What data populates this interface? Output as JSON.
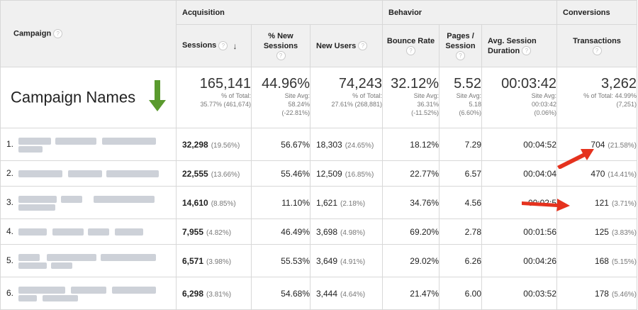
{
  "header": {
    "campaign_label": "Campaign",
    "groups": {
      "acquisition": "Acquisition",
      "behavior": "Behavior",
      "conversions": "Conversions"
    },
    "columns": {
      "sessions": "Sessions",
      "new_sessions": "% New Sessions",
      "new_users": "New Users",
      "bounce_rate": "Bounce Rate",
      "pages_session": "Pages / Session",
      "avg_duration": "Avg. Session Duration",
      "transactions": "Transactions"
    },
    "help_glyph": "?",
    "sort_glyph": "↓"
  },
  "totals": {
    "campaign_names": "Campaign Names",
    "sessions": {
      "value": "165,141",
      "sub1": "% of Total:",
      "sub2": "35.77% (461,674)"
    },
    "new_sessions": {
      "value": "44.96%",
      "sub1": "Site Avg:",
      "sub2": "58.24%",
      "sub3": "(-22.81%)"
    },
    "new_users": {
      "value": "74,243",
      "sub1": "% of Total:",
      "sub2": "27.61% (268,881)"
    },
    "bounce_rate": {
      "value": "32.12%",
      "sub1": "Site Avg:",
      "sub2": "36.31%",
      "sub3": "(-11.52%)"
    },
    "pages_session": {
      "value": "5.52",
      "sub1": "Site Avg:",
      "sub2": "5.18",
      "sub3": "(6.60%)"
    },
    "avg_duration": {
      "value": "00:03:42",
      "sub1": "Site Avg:",
      "sub2": "00:03:42",
      "sub3": "(0.06%)"
    },
    "transactions": {
      "value": "3,262",
      "sub1": "% of Total: 44.99%",
      "sub2": "(7,251)"
    }
  },
  "rows": [
    {
      "index": "1.",
      "sessions": "32,298",
      "sessions_pct": "(19.56%)",
      "new_sessions": "56.67%",
      "new_users": "18,303",
      "new_users_pct": "(24.65%)",
      "bounce_rate": "18.12%",
      "pages_session": "7.29",
      "avg_duration": "00:04:52",
      "transactions": "704",
      "transactions_pct": "(21.58%)"
    },
    {
      "index": "2.",
      "sessions": "22,555",
      "sessions_pct": "(13.66%)",
      "new_sessions": "55.46%",
      "new_users": "12,509",
      "new_users_pct": "(16.85%)",
      "bounce_rate": "22.77%",
      "pages_session": "6.57",
      "avg_duration": "00:04:04",
      "transactions": "470",
      "transactions_pct": "(14.41%)"
    },
    {
      "index": "3.",
      "sessions": "14,610",
      "sessions_pct": "(8.85%)",
      "new_sessions": "11.10%",
      "new_users": "1,621",
      "new_users_pct": "(2.18%)",
      "bounce_rate": "34.76%",
      "pages_session": "4.56",
      "avg_duration": "00:02:5",
      "transactions": "121",
      "transactions_pct": "(3.71%)"
    },
    {
      "index": "4.",
      "sessions": "7,955",
      "sessions_pct": "(4.82%)",
      "new_sessions": "46.49%",
      "new_users": "3,698",
      "new_users_pct": "(4.98%)",
      "bounce_rate": "69.20%",
      "pages_session": "2.78",
      "avg_duration": "00:01:56",
      "transactions": "125",
      "transactions_pct": "(3.83%)"
    },
    {
      "index": "5.",
      "sessions": "6,571",
      "sessions_pct": "(3.98%)",
      "new_sessions": "55.53%",
      "new_users": "3,649",
      "new_users_pct": "(4.91%)",
      "bounce_rate": "29.02%",
      "pages_session": "6.26",
      "avg_duration": "00:04:26",
      "transactions": "168",
      "transactions_pct": "(5.15%)"
    },
    {
      "index": "6.",
      "sessions": "6,298",
      "sessions_pct": "(3.81%)",
      "new_sessions": "54.68%",
      "new_users": "3,444",
      "new_users_pct": "(4.64%)",
      "bounce_rate": "21.47%",
      "pages_session": "6.00",
      "avg_duration": "00:03:52",
      "transactions": "178",
      "transactions_pct": "(5.46%)"
    }
  ],
  "colors": {
    "header_bg": "#f0f0f0",
    "green_arrow": "#5a9a2e",
    "red_arrow": "#e5321e",
    "blur_block": "#cdd1d8"
  },
  "icons": {
    "help": "question-circle-icon",
    "sort": "sort-down-icon",
    "annotation_down": "green-down-arrow-icon",
    "annotation_pointer": "red-arrow-icon"
  }
}
